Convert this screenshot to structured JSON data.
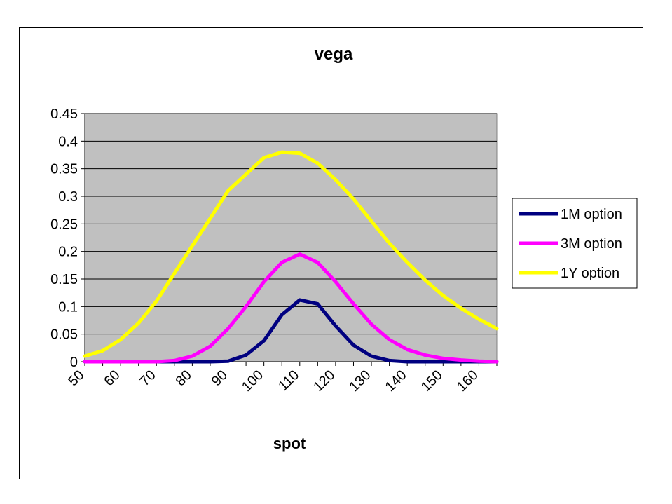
{
  "chart_data": {
    "type": "line",
    "title": "vega",
    "xlabel": "spot",
    "ylabel": "",
    "x_ticks": [
      "50",
      "60",
      "70",
      "80",
      "90",
      "100",
      "110",
      "120",
      "130",
      "140",
      "150",
      "160"
    ],
    "y_ticks": [
      "0",
      "0.05",
      "0.1",
      "0.15",
      "0.2",
      "0.25",
      "0.3",
      "0.35",
      "0.4",
      "0.45"
    ],
    "xlim": [
      50,
      165
    ],
    "ylim": [
      0,
      0.45
    ],
    "grid": "horizontal",
    "plot_background": "#C0C0C0",
    "legend_position": "right",
    "x": [
      50,
      55,
      60,
      65,
      70,
      75,
      80,
      85,
      90,
      95,
      100,
      105,
      110,
      115,
      120,
      125,
      130,
      135,
      140,
      145,
      150,
      155,
      160,
      165
    ],
    "series": [
      {
        "name": "1M option",
        "color": "#000080",
        "values": [
          0,
          0,
          0,
          0,
          0,
          0,
          0,
          0,
          0.001,
          0.012,
          0.038,
          0.085,
          0.112,
          0.105,
          0.065,
          0.03,
          0.01,
          0.002,
          0,
          0,
          0,
          0,
          0,
          0
        ]
      },
      {
        "name": "3M option",
        "color": "#FF00FF",
        "values": [
          0,
          0,
          0,
          0,
          0,
          0.002,
          0.01,
          0.028,
          0.06,
          0.1,
          0.145,
          0.18,
          0.195,
          0.18,
          0.145,
          0.105,
          0.068,
          0.04,
          0.022,
          0.012,
          0.006,
          0.003,
          0.001,
          0
        ]
      },
      {
        "name": "1Y option",
        "color": "#FFFF00",
        "values": [
          0.01,
          0.02,
          0.04,
          0.07,
          0.11,
          0.16,
          0.21,
          0.26,
          0.31,
          0.34,
          0.37,
          0.38,
          0.378,
          0.36,
          0.33,
          0.295,
          0.255,
          0.215,
          0.18,
          0.148,
          0.12,
          0.097,
          0.077,
          0.06
        ]
      }
    ]
  }
}
